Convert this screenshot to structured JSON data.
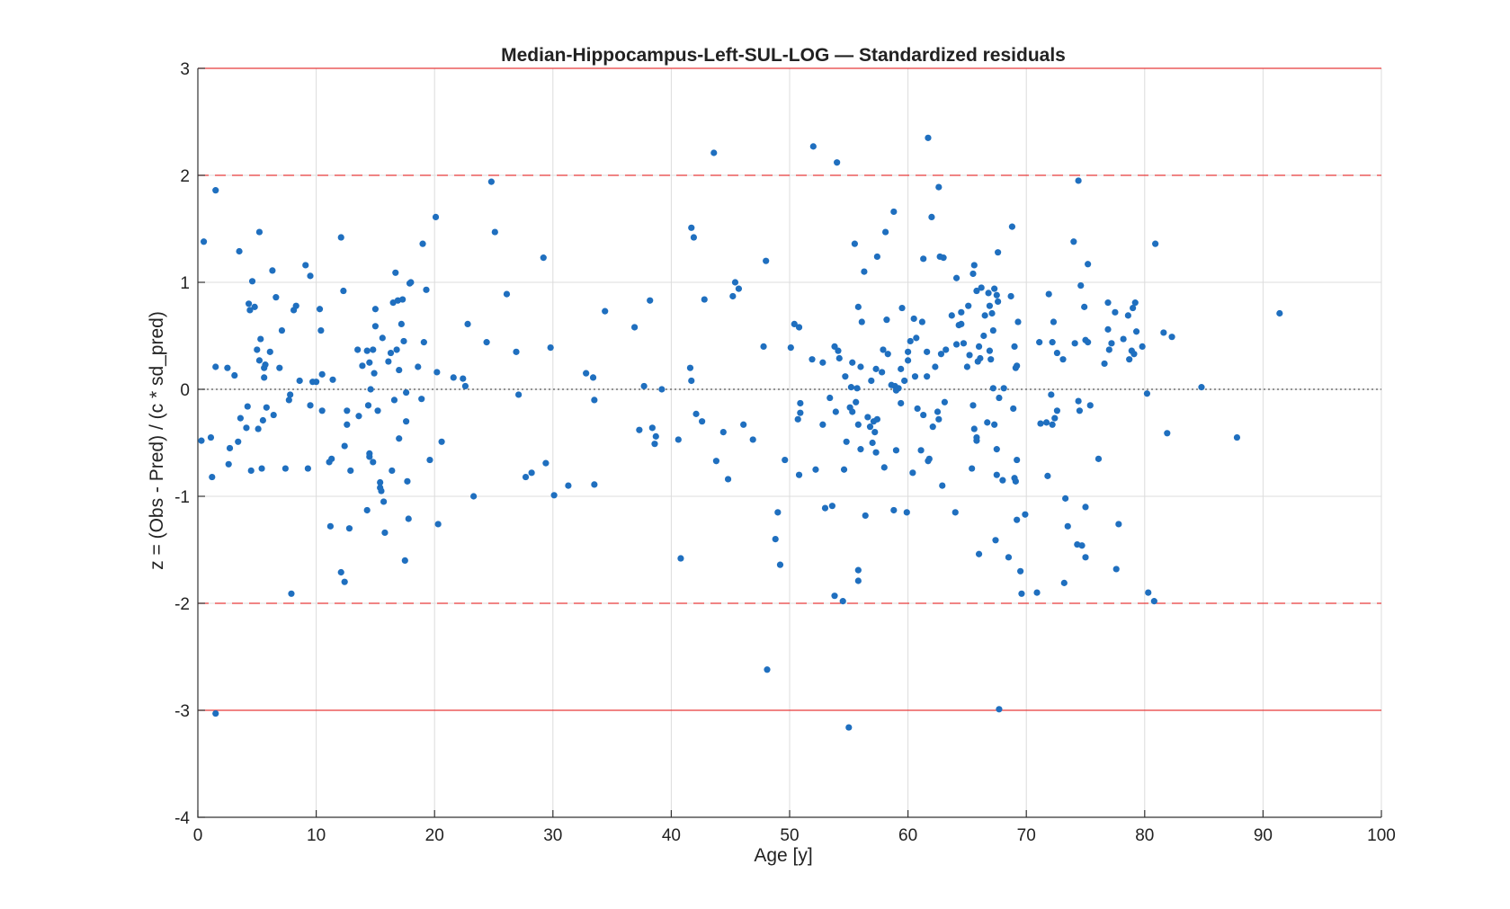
{
  "chart_data": {
    "type": "scatter",
    "title": "Median-Hippocampus-Left-SUL-LOG — Standardized residuals",
    "xlabel": "Age [y]",
    "ylabel": "z = (Obs - Pred) / (c * sd_pred)",
    "xlim": [
      0,
      100
    ],
    "ylim": [
      -4,
      3
    ],
    "xticks": [
      0,
      10,
      20,
      30,
      40,
      50,
      60,
      70,
      80,
      90,
      100
    ],
    "yticks": [
      -4,
      -3,
      -2,
      -1,
      0,
      1,
      2,
      3
    ],
    "grid": true,
    "reference_lines": [
      {
        "y": 3,
        "style": "solid",
        "color": "#e83a3a"
      },
      {
        "y": 2,
        "style": "dashed",
        "color": "#e83a3a"
      },
      {
        "y": -2,
        "style": "dashed",
        "color": "#e83a3a"
      },
      {
        "y": -3,
        "style": "solid",
        "color": "#e83a3a"
      },
      {
        "y": 0,
        "style": "dotted",
        "color": "#555555"
      }
    ],
    "marker_color": "#1f6fbf",
    "points": [
      [
        0.5,
        1.38
      ],
      [
        0.3,
        -0.48
      ],
      [
        1.1,
        -0.45
      ],
      [
        1.2,
        -0.82
      ],
      [
        1.5,
        1.86
      ],
      [
        1.5,
        0.21
      ],
      [
        1.5,
        -3.03
      ],
      [
        2.5,
        0.2
      ],
      [
        2.6,
        -0.7
      ],
      [
        2.7,
        -0.55
      ],
      [
        3.1,
        0.13
      ],
      [
        3.4,
        -0.49
      ],
      [
        3.5,
        1.29
      ],
      [
        3.6,
        -0.27
      ],
      [
        4.1,
        -0.36
      ],
      [
        4.2,
        -0.16
      ],
      [
        4.3,
        0.8
      ],
      [
        4.4,
        0.74
      ],
      [
        4.5,
        -0.76
      ],
      [
        4.6,
        1.01
      ],
      [
        4.8,
        0.77
      ],
      [
        5.0,
        0.37
      ],
      [
        5.1,
        -0.37
      ],
      [
        5.2,
        0.27
      ],
      [
        5.2,
        1.47
      ],
      [
        5.3,
        0.47
      ],
      [
        5.4,
        -0.74
      ],
      [
        5.5,
        -0.29
      ],
      [
        5.6,
        0.2
      ],
      [
        5.6,
        0.11
      ],
      [
        5.7,
        0.23
      ],
      [
        5.8,
        -0.17
      ],
      [
        6.1,
        0.35
      ],
      [
        6.3,
        1.11
      ],
      [
        6.4,
        -0.24
      ],
      [
        6.6,
        0.86
      ],
      [
        6.9,
        0.2
      ],
      [
        7.1,
        0.55
      ],
      [
        7.4,
        -0.74
      ],
      [
        7.7,
        -0.1
      ],
      [
        7.8,
        -0.05
      ],
      [
        7.9,
        -1.91
      ],
      [
        8.1,
        0.74
      ],
      [
        8.3,
        0.78
      ],
      [
        8.6,
        0.08
      ],
      [
        9.1,
        1.16
      ],
      [
        9.3,
        -0.74
      ],
      [
        9.5,
        1.06
      ],
      [
        9.5,
        -0.15
      ],
      [
        9.7,
        0.07
      ],
      [
        10.0,
        0.07
      ],
      [
        10.3,
        0.75
      ],
      [
        10.4,
        0.55
      ],
      [
        10.5,
        0.14
      ],
      [
        10.5,
        -0.2
      ],
      [
        11.1,
        -0.68
      ],
      [
        11.2,
        -1.28
      ],
      [
        11.3,
        -0.65
      ],
      [
        11.4,
        0.09
      ],
      [
        12.1,
        1.42
      ],
      [
        12.1,
        -1.71
      ],
      [
        12.3,
        0.92
      ],
      [
        12.4,
        -1.8
      ],
      [
        12.4,
        -0.53
      ],
      [
        12.6,
        -0.2
      ],
      [
        12.6,
        -0.33
      ],
      [
        12.8,
        -1.3
      ],
      [
        12.9,
        -0.76
      ],
      [
        13.5,
        0.37
      ],
      [
        13.6,
        -0.25
      ],
      [
        13.9,
        0.22
      ],
      [
        14.3,
        0.36
      ],
      [
        14.3,
        -1.13
      ],
      [
        14.4,
        -0.15
      ],
      [
        14.5,
        0.25
      ],
      [
        14.5,
        -0.6
      ],
      [
        14.5,
        -0.63
      ],
      [
        14.6,
        0.0
      ],
      [
        14.8,
        -0.68
      ],
      [
        14.8,
        0.37
      ],
      [
        14.9,
        0.15
      ],
      [
        15.0,
        0.59
      ],
      [
        15.0,
        0.75
      ],
      [
        15.2,
        -0.2
      ],
      [
        15.4,
        -0.87
      ],
      [
        15.4,
        -0.92
      ],
      [
        15.5,
        -0.95
      ],
      [
        15.6,
        0.48
      ],
      [
        15.7,
        -1.05
      ],
      [
        15.8,
        -1.34
      ],
      [
        16.1,
        0.26
      ],
      [
        16.3,
        0.34
      ],
      [
        16.4,
        -0.76
      ],
      [
        16.5,
        0.81
      ],
      [
        16.6,
        -0.1
      ],
      [
        16.7,
        1.09
      ],
      [
        16.8,
        0.37
      ],
      [
        16.9,
        0.83
      ],
      [
        17.0,
        0.18
      ],
      [
        17.0,
        -0.46
      ],
      [
        17.2,
        0.61
      ],
      [
        17.3,
        0.84
      ],
      [
        17.4,
        0.45
      ],
      [
        17.5,
        -1.6
      ],
      [
        17.6,
        -0.03
      ],
      [
        17.6,
        -0.3
      ],
      [
        17.7,
        -0.86
      ],
      [
        17.8,
        -1.21
      ],
      [
        17.9,
        0.99
      ],
      [
        18.0,
        1.0
      ],
      [
        18.6,
        0.21
      ],
      [
        18.9,
        -0.09
      ],
      [
        19.0,
        1.36
      ],
      [
        19.1,
        0.44
      ],
      [
        19.3,
        0.93
      ],
      [
        19.6,
        -0.66
      ],
      [
        20.1,
        1.61
      ],
      [
        20.2,
        0.16
      ],
      [
        20.3,
        -1.26
      ],
      [
        20.6,
        -0.49
      ],
      [
        21.6,
        0.11
      ],
      [
        22.4,
        0.1
      ],
      [
        22.6,
        0.03
      ],
      [
        22.8,
        0.61
      ],
      [
        23.3,
        -1.0
      ],
      [
        24.4,
        0.44
      ],
      [
        24.8,
        1.94
      ],
      [
        25.1,
        1.47
      ],
      [
        26.1,
        0.89
      ],
      [
        26.9,
        0.35
      ],
      [
        27.1,
        -0.05
      ],
      [
        27.7,
        -0.82
      ],
      [
        28.2,
        -0.78
      ],
      [
        29.2,
        1.23
      ],
      [
        29.4,
        -0.69
      ],
      [
        29.8,
        0.39
      ],
      [
        30.1,
        -0.99
      ],
      [
        31.3,
        -0.9
      ],
      [
        32.8,
        0.15
      ],
      [
        33.4,
        0.11
      ],
      [
        33.5,
        -0.1
      ],
      [
        33.5,
        -0.89
      ],
      [
        34.4,
        0.73
      ],
      [
        36.9,
        0.58
      ],
      [
        37.3,
        -0.38
      ],
      [
        37.7,
        0.03
      ],
      [
        38.2,
        0.83
      ],
      [
        38.4,
        -0.36
      ],
      [
        38.6,
        -0.51
      ],
      [
        38.7,
        -0.44
      ],
      [
        39.2,
        0.0
      ],
      [
        40.6,
        -0.47
      ],
      [
        40.8,
        -1.58
      ],
      [
        41.6,
        0.2
      ],
      [
        41.7,
        0.08
      ],
      [
        41.7,
        1.51
      ],
      [
        41.9,
        1.42
      ],
      [
        42.1,
        -0.23
      ],
      [
        42.6,
        -0.3
      ],
      [
        42.8,
        0.84
      ],
      [
        43.6,
        2.21
      ],
      [
        43.8,
        -0.67
      ],
      [
        44.4,
        -0.4
      ],
      [
        44.8,
        -0.84
      ],
      [
        45.2,
        0.87
      ],
      [
        45.4,
        1.0
      ],
      [
        45.7,
        0.94
      ],
      [
        46.1,
        -0.33
      ],
      [
        46.9,
        -0.47
      ],
      [
        47.8,
        0.4
      ],
      [
        48.0,
        1.2
      ],
      [
        48.1,
        -2.62
      ],
      [
        48.8,
        -1.4
      ],
      [
        49.0,
        -1.15
      ],
      [
        49.2,
        -1.64
      ],
      [
        49.6,
        -0.66
      ],
      [
        50.1,
        0.39
      ],
      [
        50.4,
        0.61
      ],
      [
        50.7,
        -0.28
      ],
      [
        50.8,
        0.58
      ],
      [
        50.8,
        -0.8
      ],
      [
        50.9,
        -0.22
      ],
      [
        50.9,
        -0.13
      ],
      [
        51.9,
        0.28
      ],
      [
        52.0,
        2.27
      ],
      [
        52.2,
        -0.75
      ],
      [
        52.8,
        0.25
      ],
      [
        52.8,
        -0.33
      ],
      [
        53.0,
        -1.11
      ],
      [
        53.4,
        -0.08
      ],
      [
        53.6,
        -1.09
      ],
      [
        53.8,
        0.4
      ],
      [
        53.8,
        -1.93
      ],
      [
        53.9,
        -0.21
      ],
      [
        54.0,
        2.12
      ],
      [
        54.1,
        0.36
      ],
      [
        54.2,
        0.29
      ],
      [
        54.5,
        -1.98
      ],
      [
        54.6,
        -0.75
      ],
      [
        54.7,
        0.12
      ],
      [
        54.8,
        -0.49
      ],
      [
        55.0,
        -3.16
      ],
      [
        55.1,
        -0.17
      ],
      [
        55.2,
        0.02
      ],
      [
        55.3,
        -0.21
      ],
      [
        55.3,
        0.25
      ],
      [
        55.5,
        1.36
      ],
      [
        55.6,
        -0.12
      ],
      [
        55.7,
        0.01
      ],
      [
        55.8,
        -1.79
      ],
      [
        55.8,
        -1.69
      ],
      [
        55.8,
        -0.33
      ],
      [
        55.8,
        0.77
      ],
      [
        56.0,
        -0.56
      ],
      [
        56.0,
        0.21
      ],
      [
        56.1,
        0.63
      ],
      [
        56.3,
        1.1
      ],
      [
        56.4,
        -1.18
      ],
      [
        56.6,
        -0.26
      ],
      [
        56.8,
        -0.35
      ],
      [
        56.9,
        0.08
      ],
      [
        57.0,
        -0.5
      ],
      [
        57.1,
        -0.3
      ],
      [
        57.2,
        -0.4
      ],
      [
        57.3,
        0.19
      ],
      [
        57.3,
        -0.59
      ],
      [
        57.4,
        -0.28
      ],
      [
        57.4,
        1.24
      ],
      [
        57.8,
        0.16
      ],
      [
        57.9,
        0.37
      ],
      [
        58.0,
        -0.73
      ],
      [
        58.1,
        1.47
      ],
      [
        58.2,
        0.65
      ],
      [
        58.3,
        0.33
      ],
      [
        58.6,
        0.04
      ],
      [
        58.8,
        1.66
      ],
      [
        58.8,
        -1.13
      ],
      [
        58.9,
        0.03
      ],
      [
        59.0,
        -0.57
      ],
      [
        59.0,
        -0.01
      ],
      [
        59.2,
        0.01
      ],
      [
        59.4,
        0.19
      ],
      [
        59.4,
        -0.13
      ],
      [
        59.5,
        0.76
      ],
      [
        59.7,
        0.08
      ],
      [
        59.9,
        -1.15
      ],
      [
        60.0,
        0.27
      ],
      [
        60.0,
        0.35
      ],
      [
        60.2,
        0.45
      ],
      [
        60.4,
        -0.78
      ],
      [
        60.5,
        0.66
      ],
      [
        60.6,
        0.12
      ],
      [
        60.7,
        0.48
      ],
      [
        60.8,
        -0.18
      ],
      [
        61.1,
        -0.57
      ],
      [
        61.2,
        0.63
      ],
      [
        61.3,
        -0.24
      ],
      [
        61.3,
        1.22
      ],
      [
        61.6,
        0.35
      ],
      [
        61.6,
        0.12
      ],
      [
        61.7,
        2.35
      ],
      [
        61.7,
        -0.67
      ],
      [
        61.8,
        -0.65
      ],
      [
        62.0,
        1.61
      ],
      [
        62.1,
        -0.35
      ],
      [
        62.3,
        0.21
      ],
      [
        62.5,
        -0.21
      ],
      [
        62.6,
        -0.28
      ],
      [
        62.6,
        1.89
      ],
      [
        62.7,
        1.24
      ],
      [
        62.8,
        0.33
      ],
      [
        62.9,
        -0.9
      ],
      [
        63.0,
        1.23
      ],
      [
        63.1,
        -0.12
      ],
      [
        63.2,
        0.37
      ],
      [
        63.7,
        0.69
      ],
      [
        64.0,
        -1.15
      ],
      [
        64.1,
        0.42
      ],
      [
        64.1,
        1.04
      ],
      [
        64.3,
        0.6
      ],
      [
        64.5,
        0.61
      ],
      [
        64.5,
        0.72
      ],
      [
        64.7,
        0.43
      ],
      [
        65.0,
        0.21
      ],
      [
        65.1,
        0.78
      ],
      [
        65.2,
        0.32
      ],
      [
        65.4,
        -0.74
      ],
      [
        65.5,
        1.08
      ],
      [
        65.5,
        -0.15
      ],
      [
        65.6,
        1.16
      ],
      [
        65.6,
        -0.37
      ],
      [
        65.8,
        0.92
      ],
      [
        65.8,
        -0.45
      ],
      [
        65.8,
        -0.48
      ],
      [
        65.9,
        0.26
      ],
      [
        66.0,
        0.4
      ],
      [
        66.0,
        -1.54
      ],
      [
        66.1,
        0.29
      ],
      [
        66.2,
        0.95
      ],
      [
        66.4,
        0.5
      ],
      [
        66.5,
        0.69
      ],
      [
        66.7,
        -0.31
      ],
      [
        66.8,
        0.9
      ],
      [
        66.9,
        0.36
      ],
      [
        66.9,
        0.78
      ],
      [
        67.0,
        0.28
      ],
      [
        67.1,
        0.71
      ],
      [
        67.2,
        0.55
      ],
      [
        67.2,
        0.01
      ],
      [
        67.3,
        0.94
      ],
      [
        67.3,
        -0.33
      ],
      [
        67.4,
        -1.41
      ],
      [
        67.5,
        -0.56
      ],
      [
        67.5,
        -0.8
      ],
      [
        67.5,
        0.88
      ],
      [
        67.6,
        0.82
      ],
      [
        67.6,
        1.28
      ],
      [
        67.7,
        -2.99
      ],
      [
        67.7,
        -0.08
      ],
      [
        68.0,
        -0.85
      ],
      [
        68.1,
        0.01
      ],
      [
        68.5,
        -1.57
      ],
      [
        68.7,
        0.87
      ],
      [
        68.8,
        1.52
      ],
      [
        68.9,
        -0.18
      ],
      [
        69.0,
        0.4
      ],
      [
        69.0,
        -0.83
      ],
      [
        69.1,
        0.2
      ],
      [
        69.1,
        -0.86
      ],
      [
        69.2,
        0.22
      ],
      [
        69.2,
        -0.66
      ],
      [
        69.2,
        -1.22
      ],
      [
        69.3,
        0.63
      ],
      [
        69.5,
        -1.7
      ],
      [
        69.6,
        -1.91
      ],
      [
        69.9,
        -1.17
      ],
      [
        70.9,
        -1.9
      ],
      [
        71.1,
        0.44
      ],
      [
        71.2,
        -0.32
      ],
      [
        71.7,
        -0.31
      ],
      [
        71.8,
        -0.81
      ],
      [
        71.9,
        0.89
      ],
      [
        72.1,
        -0.05
      ],
      [
        72.2,
        0.44
      ],
      [
        72.2,
        -0.33
      ],
      [
        72.3,
        0.63
      ],
      [
        72.4,
        -0.27
      ],
      [
        72.6,
        -0.2
      ],
      [
        72.6,
        0.34
      ],
      [
        73.1,
        0.28
      ],
      [
        73.2,
        -1.81
      ],
      [
        73.3,
        -1.02
      ],
      [
        73.5,
        -1.28
      ],
      [
        74.0,
        1.38
      ],
      [
        74.1,
        0.43
      ],
      [
        74.3,
        -1.45
      ],
      [
        74.4,
        1.95
      ],
      [
        74.4,
        -0.11
      ],
      [
        74.5,
        -0.2
      ],
      [
        74.6,
        0.97
      ],
      [
        74.7,
        -1.46
      ],
      [
        74.9,
        0.77
      ],
      [
        75.0,
        -1.57
      ],
      [
        75.0,
        -1.1
      ],
      [
        75.0,
        0.46
      ],
      [
        75.2,
        1.17
      ],
      [
        75.2,
        0.44
      ],
      [
        75.4,
        -0.15
      ],
      [
        76.1,
        -0.65
      ],
      [
        76.6,
        0.24
      ],
      [
        76.9,
        0.81
      ],
      [
        76.9,
        0.56
      ],
      [
        77.0,
        0.37
      ],
      [
        77.2,
        0.43
      ],
      [
        77.5,
        0.72
      ],
      [
        77.6,
        -1.68
      ],
      [
        77.8,
        -1.26
      ],
      [
        78.2,
        0.47
      ],
      [
        78.6,
        0.69
      ],
      [
        78.7,
        0.28
      ],
      [
        78.9,
        0.36
      ],
      [
        79.0,
        0.76
      ],
      [
        79.1,
        0.33
      ],
      [
        79.2,
        0.81
      ],
      [
        79.3,
        0.54
      ],
      [
        79.8,
        0.4
      ],
      [
        80.2,
        -0.04
      ],
      [
        80.3,
        -1.9
      ],
      [
        80.8,
        -1.98
      ],
      [
        80.9,
        1.36
      ],
      [
        81.6,
        0.53
      ],
      [
        81.9,
        -0.41
      ],
      [
        82.3,
        0.49
      ],
      [
        84.8,
        0.02
      ],
      [
        87.8,
        -0.45
      ],
      [
        91.4,
        0.71
      ]
    ]
  }
}
